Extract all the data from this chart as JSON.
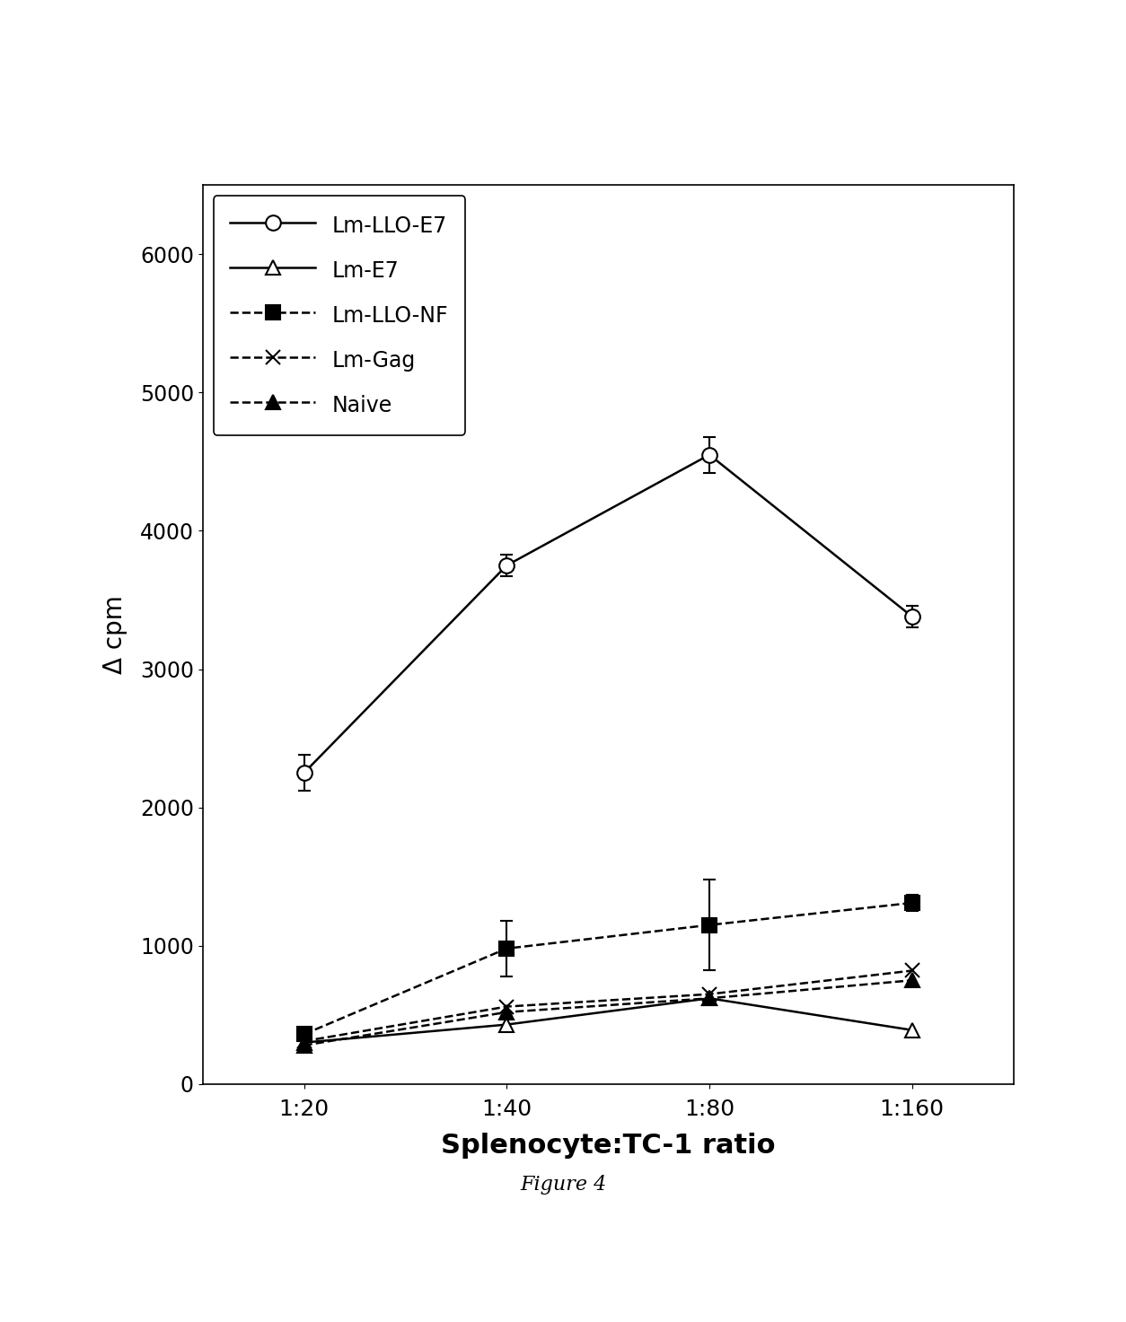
{
  "x_labels": [
    "1:20",
    "1:40",
    "1:80",
    "1:160"
  ],
  "x_values": [
    1,
    2,
    3,
    4
  ],
  "series": {
    "Lm-LLO-E7": {
      "y": [
        2250,
        3750,
        4550,
        3380
      ],
      "yerr": [
        130,
        80,
        130,
        80
      ],
      "color": "black",
      "linestyle": "solid",
      "marker": "o",
      "markersize": 12,
      "markerfacecolor": "white",
      "markeredgecolor": "black",
      "linewidth": 1.8,
      "dashed": false
    },
    "Lm-E7": {
      "y": [
        300,
        430,
        620,
        390
      ],
      "yerr": [
        0,
        0,
        0,
        0
      ],
      "color": "black",
      "linestyle": "solid",
      "marker": "^",
      "markersize": 12,
      "markerfacecolor": "white",
      "markeredgecolor": "black",
      "linewidth": 1.8,
      "dashed": false
    },
    "Lm-LLO-NF": {
      "y": [
        360,
        980,
        1150,
        1310
      ],
      "yerr": [
        40,
        200,
        330,
        60
      ],
      "color": "black",
      "linestyle": "dashed",
      "marker": "s",
      "markersize": 11,
      "markerfacecolor": "black",
      "markeredgecolor": "black",
      "linewidth": 1.8,
      "dashed": true
    },
    "Lm-Gag": {
      "y": [
        310,
        560,
        650,
        820
      ],
      "yerr": [
        0,
        0,
        0,
        0
      ],
      "color": "black",
      "linestyle": "dashed",
      "marker": "x",
      "markersize": 11,
      "markerfacecolor": "black",
      "markeredgecolor": "black",
      "linewidth": 1.8,
      "dashed": true
    },
    "Naive": {
      "y": [
        280,
        520,
        620,
        750
      ],
      "yerr": [
        0,
        0,
        0,
        0
      ],
      "color": "black",
      "linestyle": "dashed",
      "marker": "^",
      "markersize": 11,
      "markerfacecolor": "black",
      "markeredgecolor": "black",
      "linewidth": 1.8,
      "dashed": true
    }
  },
  "ylabel": "Δ cpm",
  "xlabel": "Splenocyte:TC-1 ratio",
  "ylim": [
    0,
    6500
  ],
  "yticks": [
    0,
    1000,
    2000,
    3000,
    4000,
    5000,
    6000
  ],
  "caption": "Figure 4",
  "background_color": "white",
  "legend_order": [
    "Lm-LLO-E7",
    "Lm-E7",
    "Lm-LLO-NF",
    "Lm-Gag",
    "Naive"
  ]
}
